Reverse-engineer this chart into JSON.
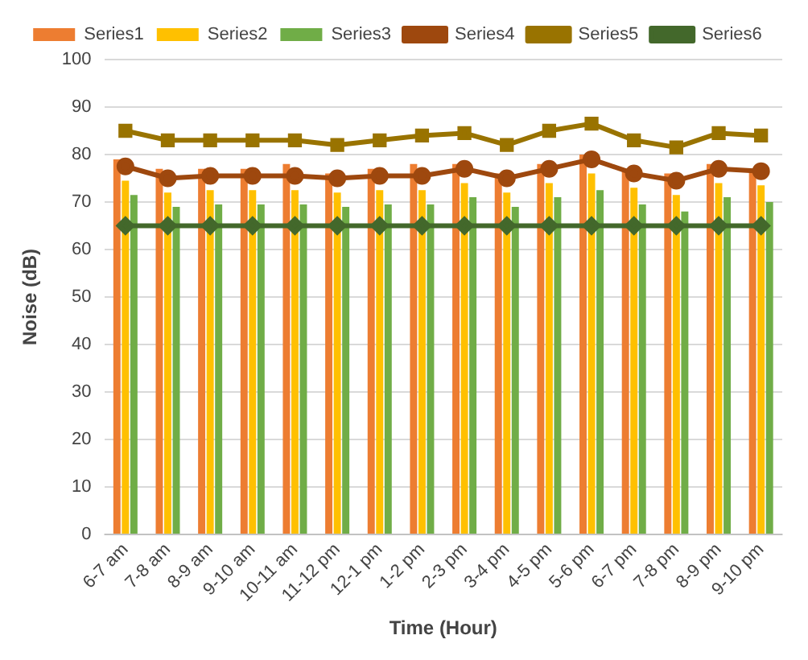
{
  "chart_data": {
    "type": "bar",
    "xlabel": "Time (Hour)",
    "ylabel": "Noise (dB)",
    "categories": [
      "6-7 am",
      "7-8 am",
      "8-9 am",
      "9-10 am",
      "10-11 am",
      "11-12 pm",
      "12-1 pm",
      "1-2 pm",
      "2-3 pm",
      "3-4 pm",
      "4-5 pm",
      "5-6 pm",
      "6-7 pm",
      "7-8 pm",
      "8-9 pm",
      "9-10 pm"
    ],
    "series": [
      {
        "name": "Series1",
        "color": "#ed7d31",
        "values": [
          79,
          77,
          77,
          77,
          78,
          76,
          77,
          78,
          78,
          76,
          78,
          80,
          77,
          76,
          78,
          77
        ]
      },
      {
        "name": "Series2",
        "color": "#ffc000",
        "values": [
          74.5,
          72,
          72.5,
          72.5,
          72.5,
          72,
          72.5,
          72.5,
          74,
          72,
          74,
          76,
          73,
          71.5,
          74,
          73.5
        ]
      },
      {
        "name": "Series3",
        "color": "#70ad47",
        "values": [
          71.5,
          69,
          69.5,
          69.5,
          69.5,
          69,
          69.5,
          69.5,
          71,
          69,
          71,
          72.5,
          69.5,
          68,
          71,
          70
        ]
      },
      {
        "name": "Series4",
        "type": "line",
        "color": "#9e480e",
        "marker": "circle",
        "values": [
          77.5,
          75,
          75.5,
          75.5,
          75.5,
          75,
          75.5,
          75.5,
          77,
          75,
          77,
          79,
          76,
          74.5,
          77,
          76.5
        ]
      },
      {
        "name": "Series5",
        "type": "line",
        "color": "#997300",
        "marker": "square",
        "values": [
          85,
          83,
          83,
          83,
          83,
          82,
          83,
          84,
          84.5,
          82,
          85,
          86.5,
          83,
          81.5,
          84.5,
          84
        ]
      },
      {
        "name": "Series6",
        "type": "line",
        "color": "#43682b",
        "marker": "diamond",
        "values": [
          65,
          65,
          65,
          65,
          65,
          65,
          65,
          65,
          65,
          65,
          65,
          65,
          65,
          65,
          65,
          65
        ]
      }
    ],
    "ylim": [
      0,
      100
    ],
    "yticks": [
      0,
      10,
      20,
      30,
      40,
      50,
      60,
      70,
      80,
      90,
      100
    ],
    "grid": "y",
    "legend": "top"
  }
}
